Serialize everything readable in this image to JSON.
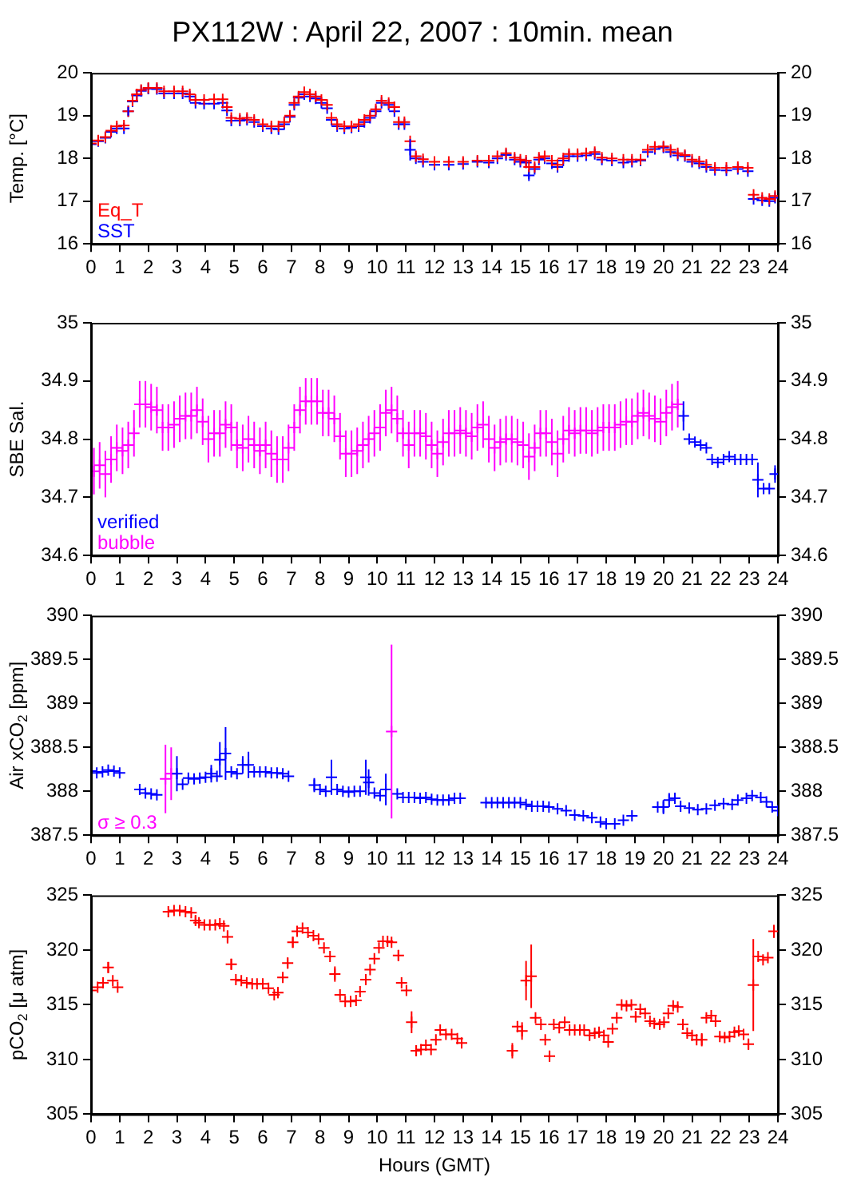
{
  "chart_data": [
    {
      "type": "scatter",
      "title": "PX112W : April 22, 2007 : 10min. mean",
      "ylabel": "Temp. [°C]",
      "marker": "cross",
      "legend": "bottom left",
      "grid": false,
      "xlim": [
        0,
        24
      ],
      "xticks": [
        0,
        1,
        2,
        3,
        4,
        5,
        6,
        7,
        8,
        9,
        10,
        11,
        12,
        13,
        14,
        15,
        16,
        17,
        18,
        19,
        20,
        21,
        22,
        23,
        24
      ],
      "ylim": [
        16,
        20
      ],
      "yticks": [
        16,
        17,
        18,
        19,
        20
      ],
      "y2lim": [
        16,
        20
      ],
      "y2ticks": [
        16,
        17,
        18,
        19,
        20
      ],
      "x": [
        0,
        0.25,
        0.5,
        0.7,
        0.9,
        1.15,
        1.3,
        1.45,
        1.6,
        1.75,
        2.0,
        2.3,
        2.55,
        2.9,
        3.2,
        3.45,
        3.65,
        3.95,
        4.3,
        4.6,
        4.75,
        4.9,
        5.2,
        5.45,
        5.7,
        6.0,
        6.3,
        6.55,
        6.75,
        6.95,
        7.1,
        7.25,
        7.45,
        7.65,
        7.85,
        8.05,
        8.25,
        8.4,
        8.6,
        8.85,
        9.1,
        9.35,
        9.55,
        9.75,
        9.95,
        10.15,
        10.4,
        10.6,
        10.75,
        10.95,
        11.15,
        11.35,
        11.6,
        12.0,
        12.5,
        13.0,
        13.5,
        13.9,
        14.2,
        14.5,
        14.8,
        15.0,
        15.2,
        15.3,
        15.5,
        15.65,
        15.85,
        16.1,
        16.3,
        16.5,
        16.7,
        17.0,
        17.3,
        17.6,
        17.85,
        18.2,
        18.6,
        18.9,
        19.2,
        19.45,
        19.7,
        20.0,
        20.25,
        20.5,
        20.75,
        21.0,
        21.25,
        21.5,
        21.8,
        22.2,
        22.6,
        22.95,
        23.15,
        23.45,
        23.7,
        23.9
      ],
      "series": [
        {
          "name": "Eq_T",
          "color": "#ff0000",
          "values": [
            18.35,
            18.42,
            18.5,
            18.65,
            18.75,
            18.77,
            19.1,
            19.35,
            19.5,
            19.6,
            19.65,
            19.65,
            19.57,
            19.57,
            19.57,
            19.5,
            19.37,
            19.37,
            19.38,
            19.38,
            19.2,
            18.95,
            18.93,
            18.95,
            18.9,
            18.8,
            18.75,
            18.75,
            18.85,
            19.0,
            19.3,
            19.45,
            19.55,
            19.5,
            19.45,
            19.37,
            19.25,
            18.95,
            18.8,
            18.75,
            18.75,
            18.8,
            18.9,
            19.0,
            19.15,
            19.35,
            19.3,
            19.2,
            18.85,
            18.85,
            18.4,
            18.05,
            17.98,
            17.92,
            17.92,
            17.92,
            17.95,
            17.95,
            18.05,
            18.12,
            18.02,
            17.97,
            17.95,
            17.8,
            17.8,
            18.02,
            18.05,
            17.95,
            17.85,
            18.0,
            18.1,
            18.1,
            18.12,
            18.15,
            18.02,
            18.0,
            17.97,
            17.97,
            17.97,
            18.2,
            18.27,
            18.28,
            18.2,
            18.12,
            18.08,
            17.97,
            17.93,
            17.85,
            17.78,
            17.78,
            17.8,
            17.78,
            17.15,
            17.08,
            17.05,
            17.12
          ]
        },
        {
          "name": "SST",
          "color": "#0000ff",
          "values": [
            18.33,
            18.4,
            18.48,
            18.62,
            18.7,
            18.7,
            19.1,
            19.33,
            19.47,
            19.58,
            19.63,
            19.62,
            19.52,
            19.52,
            19.52,
            19.45,
            19.3,
            19.28,
            19.28,
            19.3,
            19.12,
            18.88,
            18.88,
            18.9,
            18.85,
            18.75,
            18.7,
            18.68,
            18.8,
            18.97,
            19.25,
            19.42,
            19.5,
            19.45,
            19.4,
            19.3,
            19.17,
            18.9,
            18.75,
            18.7,
            18.72,
            18.75,
            18.85,
            18.95,
            19.1,
            19.3,
            19.25,
            19.1,
            18.8,
            18.8,
            18.2,
            18.0,
            17.92,
            17.85,
            17.85,
            17.87,
            17.92,
            17.9,
            18.0,
            18.08,
            17.97,
            17.92,
            17.9,
            17.6,
            17.75,
            17.97,
            18.0,
            17.88,
            17.8,
            17.95,
            18.05,
            18.05,
            18.07,
            18.1,
            17.97,
            17.95,
            17.9,
            17.92,
            17.95,
            18.15,
            18.22,
            18.25,
            18.15,
            18.07,
            18.05,
            17.92,
            17.88,
            17.8,
            17.73,
            17.72,
            17.75,
            17.7,
            17.05,
            17.02,
            17.0,
            17.08
          ],
          "errors": [
            null,
            null,
            null,
            null,
            null,
            null,
            0.1,
            null,
            null,
            null,
            null,
            null,
            null,
            null,
            null,
            null,
            null,
            null,
            null,
            null,
            null,
            null,
            null,
            null,
            null,
            null,
            null,
            null,
            null,
            null,
            null,
            null,
            null,
            null,
            null,
            null,
            null,
            null,
            null,
            null,
            null,
            null,
            null,
            null,
            null,
            null,
            null,
            null,
            null,
            null,
            0.25,
            null,
            null,
            null,
            null,
            null,
            null,
            null,
            null,
            null,
            null,
            null,
            null,
            0.08,
            null,
            null,
            null,
            null,
            null,
            null,
            null,
            null,
            null,
            null,
            null,
            null,
            null,
            null,
            null,
            null,
            null,
            null,
            null,
            null,
            null,
            null,
            null,
            null,
            null,
            null,
            null,
            null,
            null,
            null,
            null,
            null
          ]
        }
      ]
    },
    {
      "type": "scatter",
      "ylabel": "SBE Sal.",
      "marker": "cross",
      "legend": "bottom left",
      "grid": false,
      "xlim": [
        0,
        24
      ],
      "xticks": [
        0,
        1,
        2,
        3,
        4,
        5,
        6,
        7,
        8,
        9,
        10,
        11,
        12,
        13,
        14,
        15,
        16,
        17,
        18,
        19,
        20,
        21,
        22,
        23,
        24
      ],
      "ylim": [
        34.6,
        35
      ],
      "yticks": [
        34.6,
        34.7,
        34.8,
        34.9,
        35
      ],
      "y2lim": [
        34.6,
        35
      ],
      "y2ticks": [
        34.6,
        34.7,
        34.8,
        34.9,
        35
      ],
      "series": [
        {
          "name": "verified",
          "color": "#0000ff",
          "x": [
            20.7,
            20.9,
            21.1,
            21.3,
            21.5,
            21.7,
            21.9,
            22.1,
            22.3,
            22.5,
            22.7,
            22.9,
            23.1,
            23.3,
            23.5,
            23.7,
            23.9
          ],
          "values": [
            34.84,
            34.8,
            34.795,
            34.79,
            34.785,
            34.765,
            34.76,
            34.765,
            34.77,
            34.765,
            34.765,
            34.765,
            34.765,
            34.73,
            34.715,
            34.715,
            34.74
          ],
          "errors": [
            0.025,
            null,
            null,
            null,
            null,
            null,
            null,
            null,
            null,
            null,
            null,
            null,
            null,
            0.03,
            null,
            null,
            0.015
          ]
        },
        {
          "name": "bubble",
          "color": "#ff00ff",
          "x": [
            0.1,
            0.3,
            0.5,
            0.7,
            0.9,
            1.1,
            1.3,
            1.5,
            1.7,
            1.9,
            2.1,
            2.3,
            2.5,
            2.7,
            2.9,
            3.1,
            3.3,
            3.5,
            3.7,
            3.9,
            4.1,
            4.3,
            4.5,
            4.7,
            4.9,
            5.1,
            5.3,
            5.5,
            5.7,
            5.9,
            6.1,
            6.3,
            6.5,
            6.7,
            6.9,
            7.1,
            7.3,
            7.5,
            7.7,
            7.9,
            8.1,
            8.3,
            8.5,
            8.7,
            8.9,
            9.1,
            9.3,
            9.5,
            9.7,
            9.9,
            10.1,
            10.3,
            10.5,
            10.7,
            10.9,
            11.1,
            11.3,
            11.5,
            11.7,
            11.9,
            12.1,
            12.3,
            12.5,
            12.7,
            12.9,
            13.1,
            13.3,
            13.5,
            13.7,
            13.9,
            14.1,
            14.3,
            14.5,
            14.7,
            14.9,
            15.1,
            15.3,
            15.5,
            15.7,
            15.9,
            16.1,
            16.3,
            16.5,
            16.7,
            16.9,
            17.1,
            17.3,
            17.5,
            17.7,
            17.9,
            18.1,
            18.3,
            18.5,
            18.7,
            18.9,
            19.1,
            19.3,
            19.5,
            19.7,
            19.9,
            20.1,
            20.3,
            20.5
          ],
          "values": [
            34.745,
            34.755,
            34.74,
            34.765,
            34.785,
            34.78,
            34.79,
            34.81,
            34.86,
            34.86,
            34.855,
            34.85,
            34.82,
            34.82,
            34.825,
            34.835,
            34.84,
            34.84,
            34.85,
            34.83,
            34.8,
            34.81,
            34.81,
            34.825,
            34.82,
            34.79,
            34.785,
            34.8,
            34.79,
            34.78,
            34.79,
            34.775,
            34.765,
            34.765,
            34.785,
            34.82,
            34.85,
            34.865,
            34.865,
            34.865,
            34.845,
            34.845,
            34.835,
            34.805,
            34.775,
            34.775,
            34.78,
            34.79,
            34.8,
            34.81,
            34.82,
            34.845,
            34.85,
            34.835,
            34.81,
            34.79,
            34.81,
            34.81,
            34.805,
            34.79,
            34.775,
            34.795,
            34.81,
            34.81,
            34.815,
            34.81,
            34.805,
            34.82,
            34.825,
            34.8,
            34.785,
            34.795,
            34.8,
            34.8,
            34.795,
            34.79,
            34.77,
            34.785,
            34.81,
            34.81,
            34.795,
            34.775,
            34.8,
            34.815,
            34.81,
            34.815,
            34.815,
            34.81,
            34.815,
            34.82,
            34.82,
            34.82,
            34.825,
            34.83,
            34.83,
            34.84,
            34.845,
            34.84,
            34.835,
            34.83,
            34.845,
            34.855,
            34.86
          ],
          "errors": [
            0.04,
            0.04,
            0.04,
            0.04,
            0.04,
            0.04,
            0.04,
            0.04,
            0.04,
            0.04,
            0.04,
            0.04,
            0.04,
            0.04,
            0.04,
            0.04,
            0.04,
            0.04,
            0.04,
            0.04,
            0.04,
            0.04,
            0.04,
            0.04,
            0.04,
            0.04,
            0.04,
            0.04,
            0.04,
            0.04,
            0.04,
            0.04,
            0.04,
            0.04,
            0.04,
            0.04,
            0.04,
            0.04,
            0.04,
            0.04,
            0.04,
            0.04,
            0.04,
            0.04,
            0.04,
            0.04,
            0.04,
            0.04,
            0.04,
            0.04,
            0.04,
            0.04,
            0.04,
            0.04,
            0.04,
            0.04,
            0.04,
            0.04,
            0.04,
            0.04,
            0.04,
            0.04,
            0.04,
            0.04,
            0.04,
            0.04,
            0.04,
            0.04,
            0.04,
            0.04,
            0.04,
            0.04,
            0.04,
            0.04,
            0.04,
            0.04,
            0.04,
            0.04,
            0.04,
            0.04,
            0.04,
            0.04,
            0.04,
            0.04,
            0.04,
            0.04,
            0.04,
            0.04,
            0.04,
            0.04,
            0.04,
            0.04,
            0.04,
            0.04,
            0.04,
            0.04,
            0.04,
            0.04,
            0.04,
            0.04,
            0.04,
            0.04,
            0.04
          ]
        }
      ]
    },
    {
      "type": "scatter",
      "ylabel": "Air xCO$_{2}$ [ppm]",
      "marker": "cross",
      "legend": "bottom left",
      "grid": false,
      "xlim": [
        0,
        24
      ],
      "xticks": [
        0,
        1,
        2,
        3,
        4,
        5,
        6,
        7,
        8,
        9,
        10,
        11,
        12,
        13,
        14,
        15,
        16,
        17,
        18,
        19,
        20,
        21,
        22,
        23,
        24
      ],
      "ylim": [
        387.5,
        390
      ],
      "yticks": [
        387.5,
        388,
        388.5,
        389,
        389.5,
        390
      ],
      "y2lim": [
        387.5,
        390
      ],
      "y2ticks": [
        387.5,
        388,
        388.5,
        389,
        389.5,
        390
      ],
      "series": [
        {
          "color": "#0000ff",
          "x": [
            0,
            0.2,
            0.4,
            0.6,
            0.8,
            1.0,
            1.7,
            1.9,
            2.1,
            2.3,
            3.0,
            3.2,
            3.4,
            3.6,
            3.8,
            4.0,
            4.2,
            4.4,
            4.5,
            4.7,
            4.9,
            5.1,
            5.3,
            5.5,
            5.7,
            5.9,
            6.1,
            6.3,
            6.5,
            6.7,
            6.9,
            7.8,
            8.0,
            8.2,
            8.4,
            8.6,
            8.8,
            9.0,
            9.2,
            9.4,
            9.6,
            9.7,
            9.9,
            10.1,
            10.3,
            10.7,
            10.9,
            11.1,
            11.3,
            11.5,
            11.7,
            11.9,
            12.1,
            12.3,
            12.5,
            12.7,
            12.9,
            13.8,
            14.0,
            14.2,
            14.4,
            14.6,
            14.8,
            15.0,
            15.2,
            15.4,
            15.6,
            15.8,
            16.0,
            16.3,
            16.6,
            16.9,
            17.2,
            17.5,
            17.8,
            18.0,
            18.3,
            18.6,
            18.9,
            19.8,
            20.0,
            20.2,
            20.4,
            20.6,
            20.9,
            21.2,
            21.5,
            21.8,
            22.1,
            22.4,
            22.6,
            22.9,
            23.1,
            23.4,
            23.6,
            23.8,
            24.0
          ],
          "values": [
            388.23,
            388.21,
            388.22,
            388.24,
            388.23,
            388.21,
            388.02,
            387.98,
            387.97,
            387.96,
            388.2,
            388.08,
            388.15,
            388.14,
            388.15,
            388.16,
            388.2,
            388.17,
            388.36,
            388.43,
            388.22,
            388.2,
            388.3,
            388.3,
            388.22,
            388.22,
            388.22,
            388.21,
            388.21,
            388.2,
            388.17,
            388.07,
            388.02,
            388.0,
            388.16,
            388.02,
            388.0,
            387.99,
            388.0,
            388.0,
            388.16,
            388.1,
            387.98,
            387.95,
            388.02,
            387.97,
            387.93,
            387.93,
            387.93,
            387.92,
            387.93,
            387.91,
            387.9,
            387.9,
            387.9,
            387.92,
            387.92,
            387.87,
            387.87,
            387.87,
            387.87,
            387.87,
            387.87,
            387.87,
            387.85,
            387.83,
            387.83,
            387.83,
            387.82,
            387.8,
            387.78,
            387.73,
            387.72,
            387.7,
            387.65,
            387.63,
            387.63,
            387.67,
            387.72,
            387.82,
            387.82,
            387.9,
            387.92,
            387.83,
            387.81,
            387.79,
            387.8,
            387.84,
            387.86,
            387.85,
            387.9,
            387.92,
            387.95,
            387.93,
            387.88,
            387.82,
            387.78
          ],
          "errors": [
            null,
            null,
            null,
            null,
            null,
            null,
            null,
            null,
            null,
            null,
            0.2,
            null,
            null,
            null,
            null,
            null,
            0.1,
            null,
            0.2,
            0.3,
            null,
            null,
            0.1,
            0.15,
            null,
            null,
            null,
            null,
            null,
            null,
            null,
            0.08,
            null,
            null,
            0.2,
            null,
            null,
            null,
            null,
            null,
            0.2,
            0.15,
            null,
            null,
            0.18,
            null,
            null,
            null,
            null,
            null,
            null,
            null,
            null,
            null,
            null,
            null,
            null,
            null,
            null,
            null,
            null,
            null,
            null,
            null,
            null,
            null,
            null,
            null,
            null,
            null,
            null,
            null,
            null,
            null,
            null,
            null,
            null,
            null,
            null,
            null,
            0.08,
            0.08,
            null,
            null,
            null,
            null,
            null,
            null,
            null,
            null,
            null,
            null,
            null,
            null,
            null,
            null,
            null
          ]
        },
        {
          "name": "σ ≥ 0.3",
          "color": "#ff00ff",
          "x": [
            2.6,
            2.8,
            10.5
          ],
          "values": [
            388.14,
            388.2,
            388.68
          ],
          "errors": [
            0.39,
            0.3,
            0.99
          ]
        }
      ]
    },
    {
      "type": "scatter",
      "ylabel": "pCO$_{2}$ [μ atm]",
      "xlabel": "Hours (GMT)",
      "marker": "cross",
      "grid": false,
      "xlim": [
        0,
        24
      ],
      "xticks": [
        0,
        1,
        2,
        3,
        4,
        5,
        6,
        7,
        8,
        9,
        10,
        11,
        12,
        13,
        14,
        15,
        16,
        17,
        18,
        19,
        20,
        21,
        22,
        23,
        24
      ],
      "ylim": [
        305,
        325
      ],
      "yticks": [
        305,
        310,
        315,
        320,
        325
      ],
      "y2lim": [
        305,
        325
      ],
      "y2ticks": [
        305,
        310,
        315,
        320,
        325
      ],
      "series": [
        {
          "color": "#ff0000",
          "x": [
            0,
            0.23,
            0.42,
            0.6,
            0.76,
            0.93,
            2.7,
            2.9,
            3.1,
            3.3,
            3.5,
            3.65,
            3.77,
            3.96,
            4.15,
            4.34,
            4.5,
            4.64,
            4.77,
            4.9,
            5.06,
            5.25,
            5.44,
            5.63,
            5.8,
            6.0,
            6.2,
            6.4,
            6.53,
            6.7,
            6.87,
            7.05,
            7.2,
            7.39,
            7.58,
            7.77,
            7.95,
            8.14,
            8.35,
            8.52,
            8.7,
            8.88,
            9.07,
            9.26,
            9.4,
            9.6,
            9.75,
            9.9,
            10.06,
            10.2,
            10.36,
            10.5,
            10.74,
            10.85,
            11.02,
            11.2,
            11.36,
            11.53,
            11.7,
            11.88,
            12.05,
            12.2,
            12.4,
            12.6,
            12.8,
            12.95,
            14.72,
            14.9,
            15.06,
            15.2,
            15.38,
            15.53,
            15.72,
            15.87,
            16.02,
            16.17,
            16.36,
            16.55,
            16.72,
            16.9,
            17.08,
            17.23,
            17.42,
            17.6,
            17.75,
            17.92,
            18.07,
            18.22,
            18.37,
            18.54,
            18.71,
            18.88,
            19.03,
            19.19,
            19.36,
            19.53,
            19.68,
            19.87,
            20.02,
            20.17,
            20.34,
            20.5,
            20.68,
            20.83,
            21.0,
            21.16,
            21.34,
            21.5,
            21.67,
            21.82,
            21.97,
            22.14,
            22.31,
            22.48,
            22.63,
            22.8,
            22.97,
            23.14,
            23.31,
            23.48,
            23.65,
            23.86
          ],
          "values": [
            316.3,
            316.6,
            317.0,
            318.4,
            317.2,
            316.6,
            323.5,
            323.6,
            323.6,
            323.5,
            323.4,
            322.7,
            322.5,
            322.3,
            322.3,
            322.3,
            322.4,
            322.2,
            321.2,
            318.7,
            317.3,
            317.2,
            317.0,
            316.9,
            316.9,
            316.9,
            316.5,
            315.9,
            316.1,
            317.5,
            318.8,
            320.7,
            321.7,
            322.0,
            321.6,
            321.3,
            321.0,
            320.2,
            319.4,
            317.8,
            315.9,
            315.3,
            315.3,
            315.4,
            316.2,
            317.3,
            318.2,
            319.2,
            320.2,
            320.8,
            320.8,
            320.7,
            319.5,
            317.0,
            316.3,
            313.4,
            310.8,
            310.9,
            311.3,
            310.9,
            311.8,
            312.7,
            312.3,
            312.3,
            311.9,
            311.5,
            310.8,
            313.0,
            312.6,
            317.2,
            317.6,
            313.8,
            313.2,
            311.8,
            310.3,
            313.2,
            312.9,
            313.4,
            312.7,
            312.7,
            312.7,
            312.7,
            312.2,
            312.4,
            312.5,
            312.2,
            311.6,
            312.8,
            313.8,
            315.0,
            314.9,
            315.0,
            313.9,
            314.6,
            314.2,
            313.5,
            313.3,
            313.2,
            313.4,
            314.2,
            314.9,
            314.8,
            313.2,
            312.4,
            312.2,
            311.8,
            311.8,
            313.8,
            314.0,
            313.5,
            312.1,
            312.0,
            312.1,
            312.5,
            312.6,
            312.3,
            311.4,
            316.8,
            319.4,
            319.1,
            319.3,
            321.7
          ],
          "errors": [
            null,
            null,
            null,
            0.5,
            null,
            null,
            null,
            null,
            null,
            null,
            null,
            0.4,
            null,
            null,
            null,
            null,
            null,
            null,
            0.6,
            0.5,
            null,
            null,
            null,
            null,
            null,
            null,
            null,
            null,
            0.5,
            null,
            0.5,
            0.5,
            null,
            null,
            null,
            null,
            null,
            null,
            null,
            0.7,
            null,
            null,
            null,
            null,
            null,
            null,
            null,
            null,
            null,
            null,
            null,
            null,
            0.5,
            null,
            null,
            1.0,
            0.5,
            null,
            null,
            null,
            null,
            null,
            null,
            null,
            null,
            null,
            0.7,
            0.5,
            0.8,
            1.8,
            2.9,
            null,
            null,
            null,
            0.5,
            null,
            null,
            null,
            null,
            null,
            null,
            null,
            null,
            null,
            null,
            null,
            null,
            null,
            null,
            null,
            null,
            null,
            0.5,
            null,
            null,
            null,
            null,
            null,
            null,
            null,
            null,
            null,
            0.5,
            null,
            null,
            null,
            0.6,
            null,
            null,
            null,
            null,
            null,
            null,
            null,
            null,
            null,
            0.5,
            4.2,
            null,
            null,
            null,
            0.6
          ]
        }
      ]
    }
  ]
}
